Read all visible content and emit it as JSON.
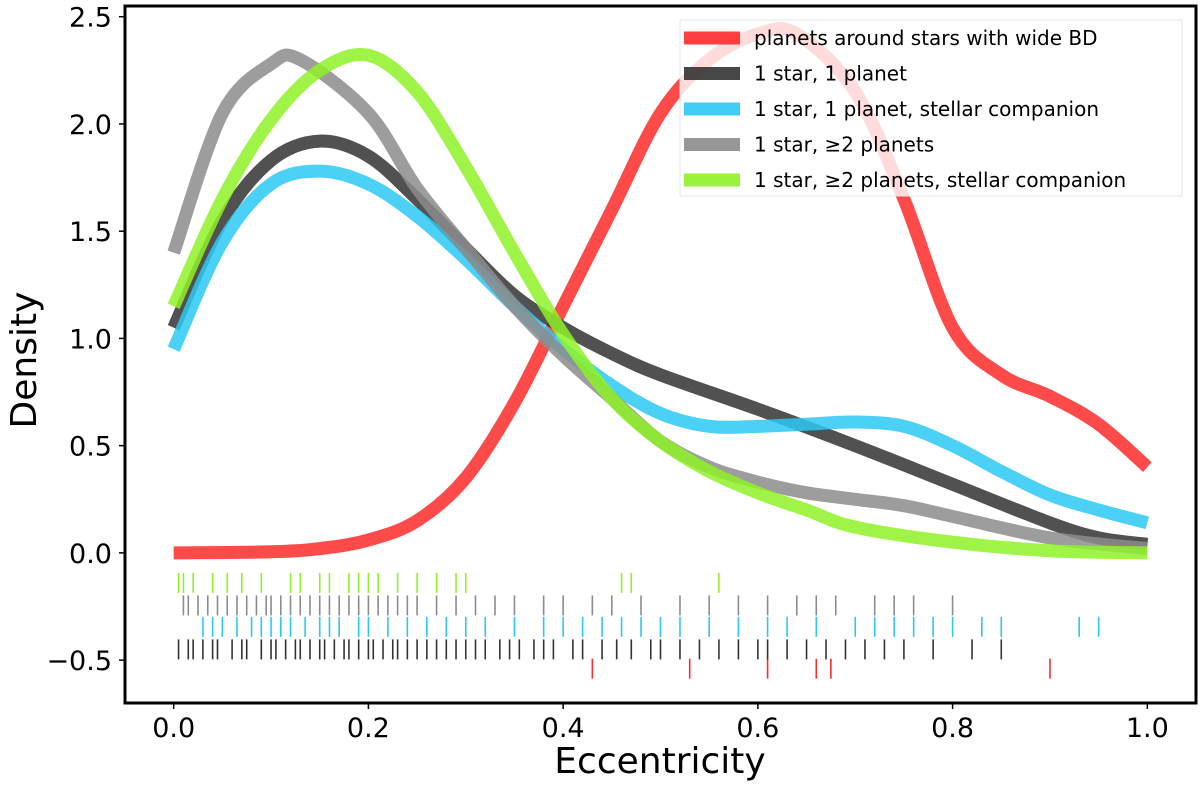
{
  "chart_data": {
    "type": "line",
    "title": "",
    "xlabel": "Eccentricity",
    "ylabel": "Density",
    "xlim": [
      -0.05,
      1.05
    ],
    "ylim": [
      -0.7,
      2.55
    ],
    "xticks": [
      {
        "value": 0.0,
        "label": "0.0"
      },
      {
        "value": 0.2,
        "label": "0.2"
      },
      {
        "value": 0.4,
        "label": "0.4"
      },
      {
        "value": 0.6,
        "label": "0.6"
      },
      {
        "value": 0.8,
        "label": "0.8"
      },
      {
        "value": 1.0,
        "label": "1.0"
      }
    ],
    "yticks": [
      {
        "value": -0.5,
        "label": "−0.5"
      },
      {
        "value": 0.0,
        "label": "0.0"
      },
      {
        "value": 0.5,
        "label": "0.5"
      },
      {
        "value": 1.0,
        "label": "1.0"
      },
      {
        "value": 1.5,
        "label": "1.5"
      },
      {
        "value": 2.0,
        "label": "2.0"
      },
      {
        "value": 2.5,
        "label": "2.5"
      }
    ],
    "grid": false,
    "legend_position": "top-right",
    "series": [
      {
        "name": "planets around stars with wide BD",
        "color": "#ff2a2a",
        "x": [
          0.0,
          0.1,
          0.15,
          0.2,
          0.25,
          0.3,
          0.35,
          0.4,
          0.45,
          0.5,
          0.55,
          0.6,
          0.64,
          0.7,
          0.75,
          0.8,
          0.85,
          0.9,
          0.95,
          1.0
        ],
        "y": [
          0.0,
          0.005,
          0.02,
          0.06,
          0.15,
          0.35,
          0.7,
          1.15,
          1.6,
          2.05,
          2.3,
          2.42,
          2.42,
          2.15,
          1.65,
          1.05,
          0.83,
          0.73,
          0.6,
          0.4
        ],
        "rug_y": -0.54,
        "rug": [
          0.43,
          0.53,
          0.61,
          0.66,
          0.675,
          0.9
        ]
      },
      {
        "name": "1 star, 1 planet",
        "color": "#333333",
        "x": [
          0.0,
          0.05,
          0.1,
          0.15,
          0.2,
          0.25,
          0.3,
          0.35,
          0.4,
          0.45,
          0.5,
          0.6,
          0.7,
          0.8,
          0.9,
          0.95,
          1.0
        ],
        "y": [
          1.05,
          1.55,
          1.83,
          1.92,
          1.85,
          1.65,
          1.42,
          1.2,
          1.05,
          0.93,
          0.83,
          0.67,
          0.5,
          0.32,
          0.14,
          0.07,
          0.04
        ],
        "rug_y": -0.45,
        "rug": [
          0.005,
          0.015,
          0.02,
          0.03,
          0.04,
          0.045,
          0.06,
          0.07,
          0.075,
          0.09,
          0.1,
          0.105,
          0.115,
          0.125,
          0.13,
          0.14,
          0.15,
          0.155,
          0.165,
          0.175,
          0.18,
          0.19,
          0.2,
          0.205,
          0.215,
          0.225,
          0.23,
          0.24,
          0.25,
          0.26,
          0.27,
          0.28,
          0.29,
          0.3,
          0.31,
          0.32,
          0.335,
          0.345,
          0.355,
          0.37,
          0.38,
          0.39,
          0.41,
          0.42,
          0.44,
          0.455,
          0.47,
          0.49,
          0.5,
          0.52,
          0.54,
          0.56,
          0.58,
          0.6,
          0.61,
          0.63,
          0.65,
          0.67,
          0.69,
          0.71,
          0.73,
          0.75,
          0.78,
          0.82,
          0.85
        ]
      },
      {
        "name": "1 star, 1 planet, stellar companion",
        "color": "#2bc8f5",
        "x": [
          0.0,
          0.05,
          0.1,
          0.15,
          0.2,
          0.25,
          0.3,
          0.35,
          0.4,
          0.45,
          0.5,
          0.55,
          0.6,
          0.65,
          0.7,
          0.75,
          0.8,
          0.85,
          0.9,
          0.95,
          1.0
        ],
        "y": [
          0.95,
          1.45,
          1.72,
          1.78,
          1.72,
          1.57,
          1.37,
          1.15,
          0.95,
          0.78,
          0.65,
          0.59,
          0.59,
          0.6,
          0.61,
          0.59,
          0.5,
          0.38,
          0.27,
          0.2,
          0.14
        ],
        "rug_y": -0.345,
        "rug": [
          0.03,
          0.04,
          0.05,
          0.065,
          0.08,
          0.09,
          0.1,
          0.11,
          0.12,
          0.135,
          0.15,
          0.16,
          0.17,
          0.19,
          0.2,
          0.22,
          0.24,
          0.26,
          0.28,
          0.3,
          0.32,
          0.35,
          0.38,
          0.4,
          0.42,
          0.44,
          0.46,
          0.48,
          0.5,
          0.52,
          0.55,
          0.58,
          0.61,
          0.63,
          0.66,
          0.7,
          0.72,
          0.74,
          0.76,
          0.78,
          0.8,
          0.83,
          0.85,
          0.93,
          0.95
        ]
      },
      {
        "name": "1 star, ≥2 planets",
        "color": "#8c8c8c",
        "x": [
          0.0,
          0.05,
          0.1,
          0.13,
          0.2,
          0.25,
          0.3,
          0.35,
          0.4,
          0.45,
          0.5,
          0.55,
          0.6,
          0.65,
          0.7,
          0.75,
          0.8,
          0.9,
          1.0
        ],
        "y": [
          1.4,
          2.05,
          2.28,
          2.3,
          2.05,
          1.7,
          1.42,
          1.15,
          0.92,
          0.72,
          0.52,
          0.4,
          0.33,
          0.28,
          0.25,
          0.22,
          0.17,
          0.07,
          0.02
        ],
        "rug_y": -0.245,
        "rug": [
          0.01,
          0.015,
          0.025,
          0.035,
          0.045,
          0.055,
          0.065,
          0.075,
          0.085,
          0.095,
          0.1,
          0.11,
          0.12,
          0.13,
          0.14,
          0.15,
          0.16,
          0.17,
          0.18,
          0.19,
          0.2,
          0.21,
          0.22,
          0.23,
          0.24,
          0.25,
          0.27,
          0.29,
          0.31,
          0.33,
          0.35,
          0.38,
          0.4,
          0.43,
          0.45,
          0.48,
          0.52,
          0.55,
          0.58,
          0.61,
          0.64,
          0.66,
          0.68,
          0.72,
          0.74,
          0.76,
          0.8
        ]
      },
      {
        "name": "1 star, ≥2 planets, stellar companion",
        "color": "#8ef227",
        "x": [
          0.0,
          0.05,
          0.1,
          0.15,
          0.2,
          0.25,
          0.3,
          0.35,
          0.4,
          0.45,
          0.5,
          0.55,
          0.6,
          0.65,
          0.7,
          0.8,
          0.9,
          1.0
        ],
        "y": [
          1.15,
          1.65,
          2.02,
          2.25,
          2.32,
          2.15,
          1.8,
          1.4,
          1.02,
          0.72,
          0.52,
          0.38,
          0.28,
          0.2,
          0.12,
          0.05,
          0.01,
          0.0
        ],
        "rug_y": -0.14,
        "rug": [
          0.005,
          0.01,
          0.02,
          0.04,
          0.055,
          0.07,
          0.09,
          0.12,
          0.13,
          0.15,
          0.16,
          0.18,
          0.19,
          0.2,
          0.21,
          0.23,
          0.25,
          0.27,
          0.29,
          0.3,
          0.46,
          0.47,
          0.56
        ]
      }
    ]
  }
}
